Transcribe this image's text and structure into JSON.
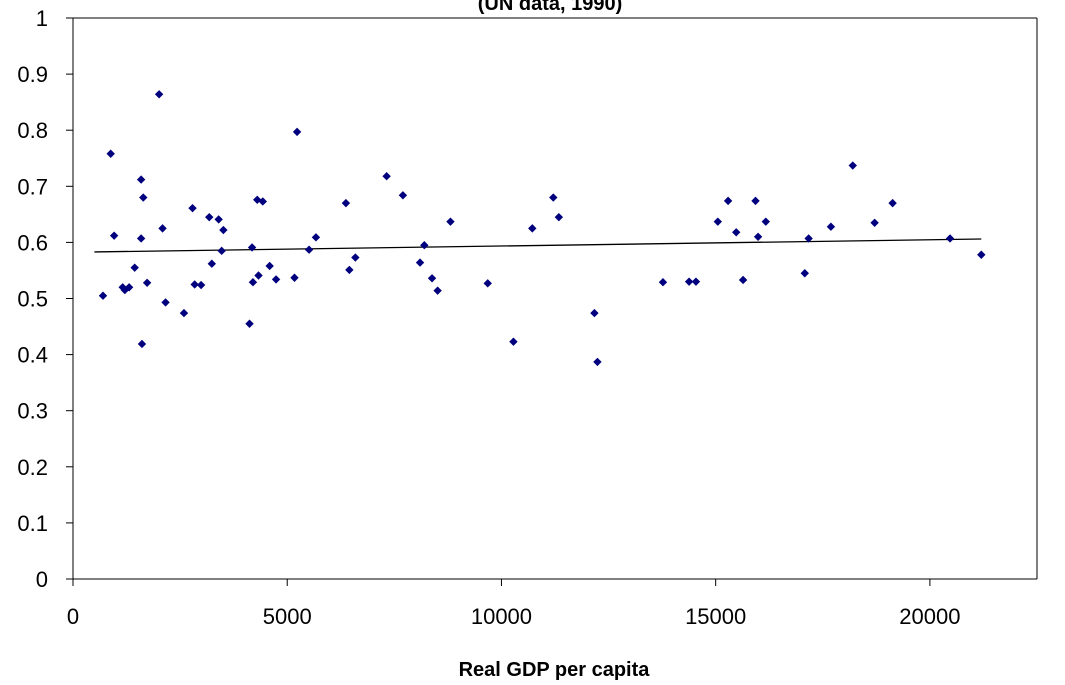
{
  "chart_data": {
    "type": "scatter",
    "title": "(UN data, 1990)",
    "xlabel": "Real GDP per capita",
    "ylabel": "",
    "xlim": [
      0,
      22500
    ],
    "ylim": [
      0,
      1
    ],
    "x_ticks": [
      "0",
      "5000",
      "10000",
      "15000",
      "20000"
    ],
    "y_ticks": [
      "0",
      "0.1",
      "0.2",
      "0.3",
      "0.4",
      "0.5",
      "0.6",
      "0.7",
      "0.8",
      "0.9",
      "1"
    ],
    "grid": false,
    "legend": "none",
    "marker_color": "#00007f",
    "trendline": {
      "x": [
        500,
        21200
      ],
      "y": [
        0.583,
        0.606
      ]
    },
    "points": [
      [
        700,
        0.505
      ],
      [
        880,
        0.758
      ],
      [
        960,
        0.612
      ],
      [
        1160,
        0.52
      ],
      [
        1210,
        0.515
      ],
      [
        1310,
        0.52
      ],
      [
        1440,
        0.555
      ],
      [
        1590,
        0.712
      ],
      [
        1590,
        0.607
      ],
      [
        1610,
        0.419
      ],
      [
        1640,
        0.68
      ],
      [
        1730,
        0.528
      ],
      [
        2010,
        0.864
      ],
      [
        2090,
        0.625
      ],
      [
        2160,
        0.493
      ],
      [
        2590,
        0.474
      ],
      [
        2790,
        0.661
      ],
      [
        2840,
        0.525
      ],
      [
        2990,
        0.524
      ],
      [
        3180,
        0.645
      ],
      [
        3240,
        0.562
      ],
      [
        3400,
        0.641
      ],
      [
        3470,
        0.585
      ],
      [
        3510,
        0.622
      ],
      [
        4120,
        0.455
      ],
      [
        4180,
        0.591
      ],
      [
        4200,
        0.529
      ],
      [
        4300,
        0.676
      ],
      [
        4330,
        0.541
      ],
      [
        4430,
        0.673
      ],
      [
        4590,
        0.558
      ],
      [
        4740,
        0.534
      ],
      [
        5170,
        0.537
      ],
      [
        5230,
        0.797
      ],
      [
        5510,
        0.587
      ],
      [
        5670,
        0.609
      ],
      [
        6370,
        0.67
      ],
      [
        6450,
        0.551
      ],
      [
        6590,
        0.573
      ],
      [
        7320,
        0.718
      ],
      [
        7700,
        0.684
      ],
      [
        8100,
        0.564
      ],
      [
        8200,
        0.595
      ],
      [
        8380,
        0.536
      ],
      [
        8510,
        0.514
      ],
      [
        8810,
        0.637
      ],
      [
        9680,
        0.527
      ],
      [
        10280,
        0.423
      ],
      [
        10720,
        0.625
      ],
      [
        11210,
        0.68
      ],
      [
        11340,
        0.645
      ],
      [
        12170,
        0.474
      ],
      [
        12240,
        0.387
      ],
      [
        13770,
        0.529
      ],
      [
        14380,
        0.53
      ],
      [
        14540,
        0.53
      ],
      [
        15050,
        0.637
      ],
      [
        15290,
        0.674
      ],
      [
        15480,
        0.618
      ],
      [
        15640,
        0.533
      ],
      [
        15930,
        0.674
      ],
      [
        15990,
        0.61
      ],
      [
        16170,
        0.637
      ],
      [
        17080,
        0.545
      ],
      [
        17170,
        0.607
      ],
      [
        17690,
        0.628
      ],
      [
        18200,
        0.737
      ],
      [
        18710,
        0.635
      ],
      [
        19130,
        0.67
      ],
      [
        20470,
        0.607
      ],
      [
        21200,
        0.578
      ]
    ]
  }
}
